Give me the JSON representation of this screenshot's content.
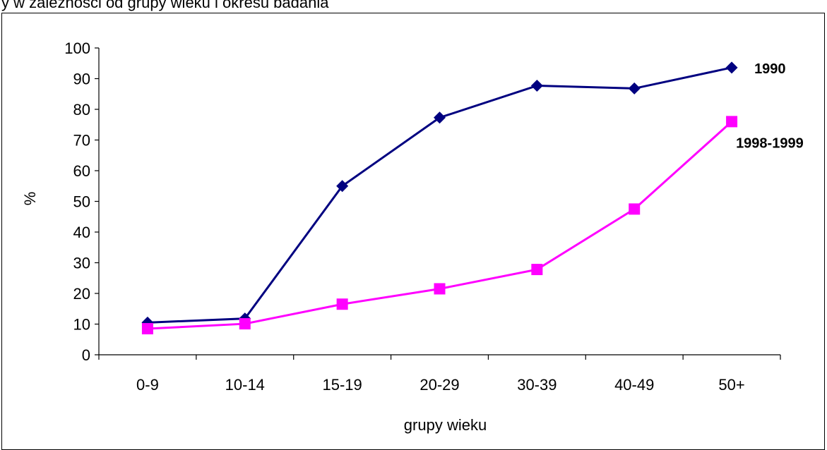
{
  "caption": "y w zależności od grupy wieku i okresu badania",
  "chart_data": {
    "type": "line",
    "categories": [
      "0-9",
      "10-14",
      "15-19",
      "20-29",
      "30-39",
      "40-49",
      "50+"
    ],
    "series": [
      {
        "name": "1990",
        "color": "#000080",
        "marker": "diamond",
        "values": [
          10.5,
          11.8,
          55,
          77.3,
          87.7,
          86.8,
          93.6
        ]
      },
      {
        "name": "1998-1999",
        "color": "#ff00ff",
        "marker": "square",
        "values": [
          8.5,
          10.1,
          16.5,
          21.5,
          27.8,
          47.5,
          76
        ]
      }
    ],
    "ylabel": "%",
    "xlabel": "grupy wieku",
    "ylim": [
      0,
      100
    ],
    "yticks": [
      0,
      10,
      20,
      30,
      40,
      50,
      60,
      70,
      80,
      90,
      100
    ],
    "grid": false,
    "legend": "series labels at line ends"
  }
}
